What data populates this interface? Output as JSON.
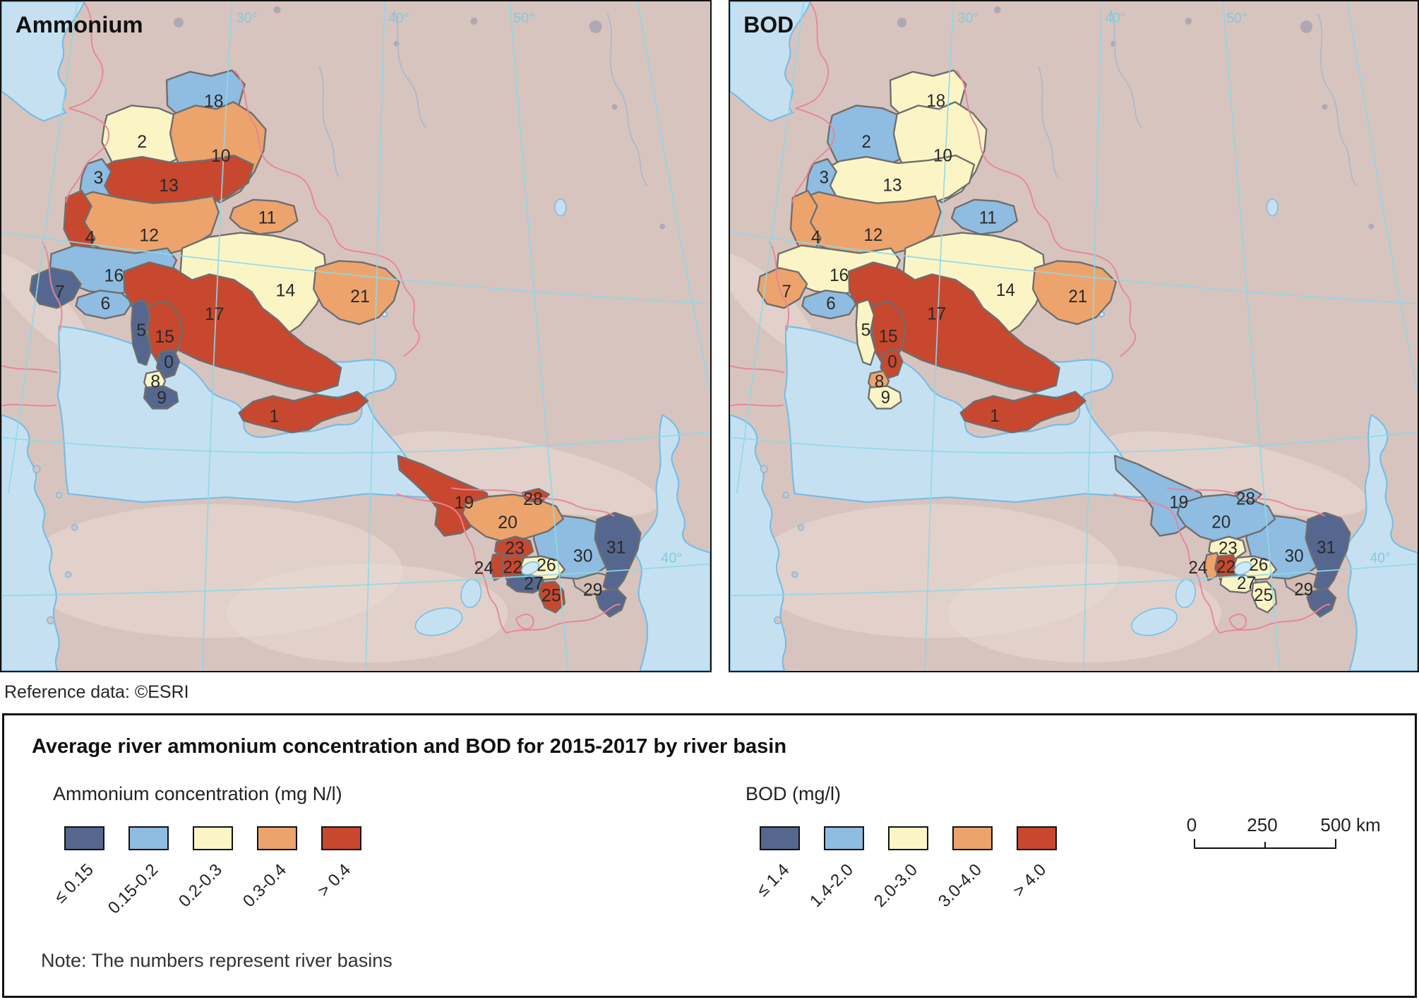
{
  "reference_note": "Reference data: ©ESRI",
  "panels": [
    {
      "title": "Ammonium",
      "metric": "ammonium"
    },
    {
      "title": "BOD",
      "metric": "bod"
    }
  ],
  "graticule": {
    "top": [
      "30°",
      "40°",
      "50°"
    ],
    "right": "40°"
  },
  "classes": {
    "colors": [
      "#55678F",
      "#8FBCE1",
      "#FBF5C6",
      "#ECA46C",
      "#C8472F"
    ],
    "ammonium": {
      "title": "Ammonium concentration (mg N/l)",
      "labels": [
        "≤ 0.15",
        "0.15-0.2",
        "0.2-0.3",
        "0.3-0.4",
        "> 0.4"
      ]
    },
    "bod": {
      "title": "BOD (mg/l)",
      "labels": [
        "≤ 1.4",
        "1.4-2.0",
        "2.0-3.0",
        "3.0-4.0",
        "> 4.0"
      ]
    }
  },
  "basins": [
    {
      "n": 0,
      "ammonium": 0,
      "bod": 4
    },
    {
      "n": 1,
      "ammonium": 4,
      "bod": 4
    },
    {
      "n": 2,
      "ammonium": 2,
      "bod": 1
    },
    {
      "n": 3,
      "ammonium": 1,
      "bod": 1
    },
    {
      "n": 4,
      "ammonium": 4,
      "bod": 3
    },
    {
      "n": 5,
      "ammonium": 0,
      "bod": 2
    },
    {
      "n": 6,
      "ammonium": 1,
      "bod": 1
    },
    {
      "n": 7,
      "ammonium": 0,
      "bod": 3
    },
    {
      "n": 8,
      "ammonium": 2,
      "bod": 3
    },
    {
      "n": 9,
      "ammonium": 0,
      "bod": 2
    },
    {
      "n": 10,
      "ammonium": 3,
      "bod": 2
    },
    {
      "n": 11,
      "ammonium": 3,
      "bod": 1
    },
    {
      "n": 12,
      "ammonium": 3,
      "bod": 3
    },
    {
      "n": 13,
      "ammonium": 4,
      "bod": 2
    },
    {
      "n": 14,
      "ammonium": 2,
      "bod": 2
    },
    {
      "n": 15,
      "ammonium": 4,
      "bod": 4
    },
    {
      "n": 16,
      "ammonium": 1,
      "bod": 2
    },
    {
      "n": 17,
      "ammonium": 4,
      "bod": 4
    },
    {
      "n": 18,
      "ammonium": 1,
      "bod": 2
    },
    {
      "n": 19,
      "ammonium": 4,
      "bod": 1
    },
    {
      "n": 20,
      "ammonium": 3,
      "bod": 1
    },
    {
      "n": 21,
      "ammonium": 3,
      "bod": 3
    },
    {
      "n": 22,
      "ammonium": 4,
      "bod": 4
    },
    {
      "n": 23,
      "ammonium": 4,
      "bod": 2
    },
    {
      "n": 24,
      "ammonium": 4,
      "bod": 3
    },
    {
      "n": 25,
      "ammonium": 4,
      "bod": 2
    },
    {
      "n": 26,
      "ammonium": 2,
      "bod": 2
    },
    {
      "n": 27,
      "ammonium": 0,
      "bod": 2
    },
    {
      "n": 28,
      "ammonium": 4,
      "bod": 1
    },
    {
      "n": 29,
      "ammonium": 0,
      "bod": 0
    },
    {
      "n": 30,
      "ammonium": 1,
      "bod": 1
    },
    {
      "n": 31,
      "ammonium": 0,
      "bod": 0
    }
  ],
  "legend": {
    "title": "Average river ammonium concentration and BOD for 2015-2017 by river basin",
    "note": "Note: The numbers represent river basins",
    "scalebar": {
      "tick_labels": [
        "0",
        "250",
        "500 km"
      ]
    }
  }
}
